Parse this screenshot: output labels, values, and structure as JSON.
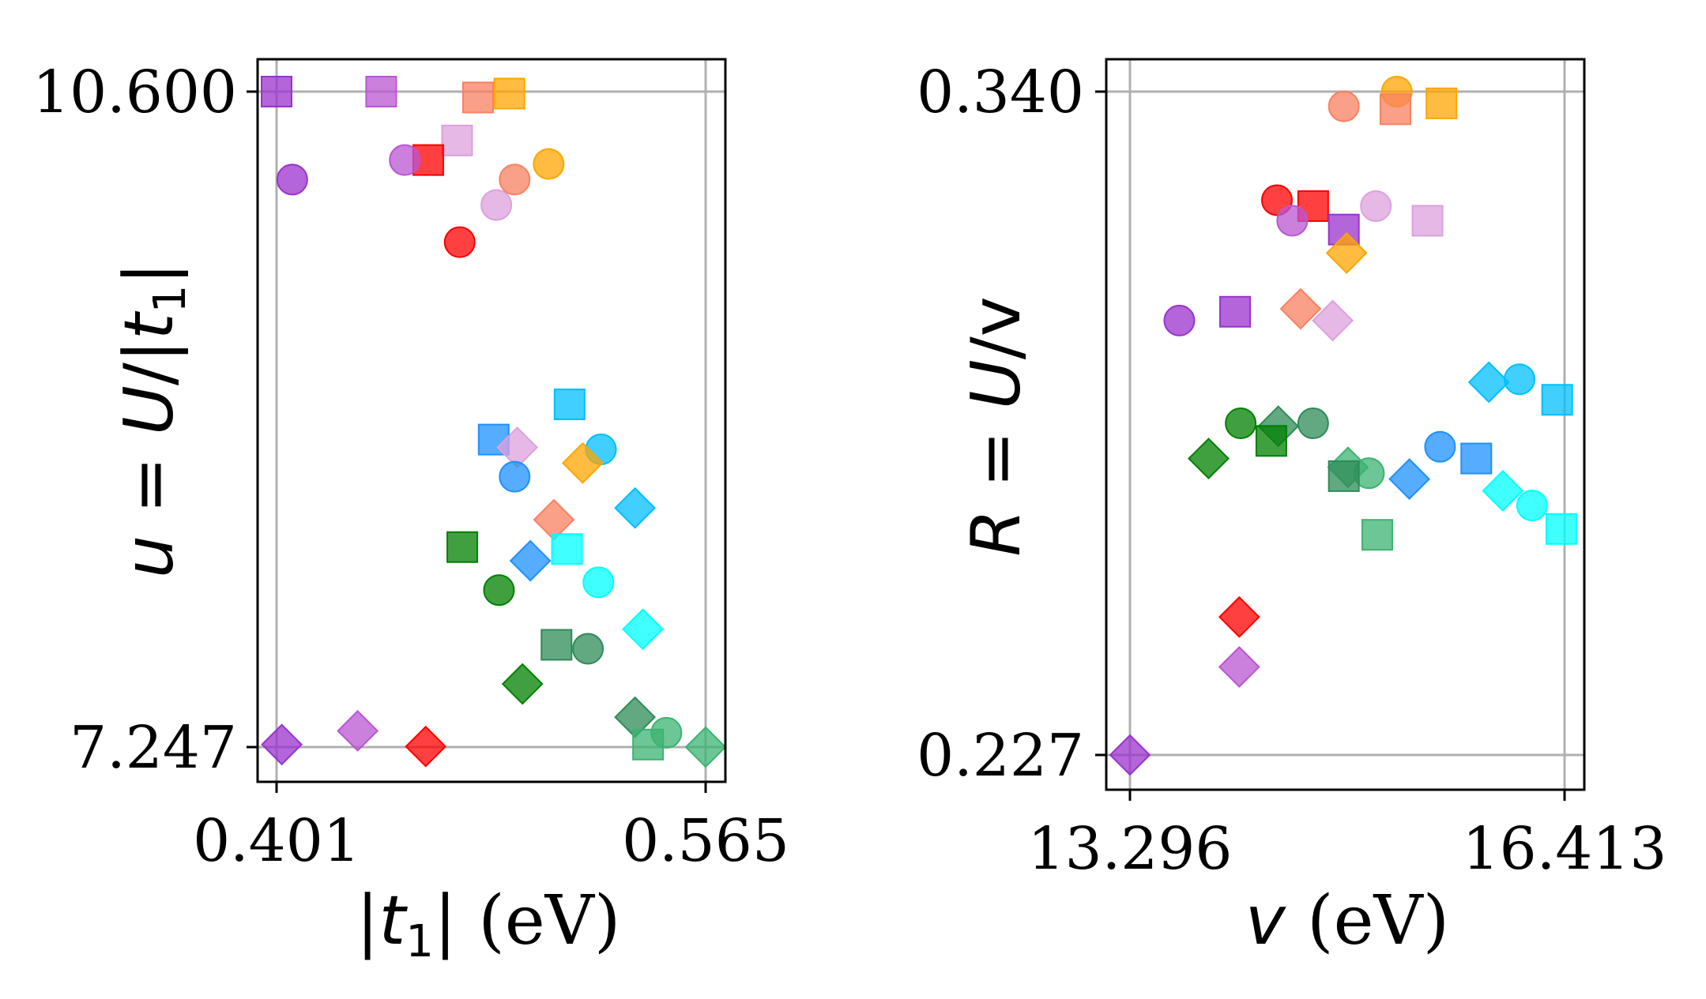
{
  "chart_data": [
    {
      "type": "scatter",
      "xlabel": "|t1| (eV)",
      "ylabel": "u = U/|t1|",
      "xlim": [
        0.401,
        0.565
      ],
      "ylim": [
        7.247,
        10.6
      ],
      "xticks": [
        "0.401",
        "0.565"
      ],
      "yticks": [
        "7.247",
        "10.600"
      ],
      "grid": true,
      "points": [
        {
          "x": 0.401,
          "y": 10.6,
          "color": "#9932cc",
          "marker": "square"
        },
        {
          "x": 0.441,
          "y": 10.6,
          "color": "#ba55d3",
          "marker": "square"
        },
        {
          "x": 0.478,
          "y": 10.57,
          "color": "#fa8060",
          "marker": "square"
        },
        {
          "x": 0.49,
          "y": 10.59,
          "color": "#ffa500",
          "marker": "square"
        },
        {
          "x": 0.47,
          "y": 10.35,
          "color": "#dda0dd",
          "marker": "square"
        },
        {
          "x": 0.459,
          "y": 10.25,
          "color": "#ff0000",
          "marker": "square"
        },
        {
          "x": 0.45,
          "y": 10.25,
          "color": "#ba55d3",
          "marker": "circle"
        },
        {
          "x": 0.407,
          "y": 10.15,
          "color": "#9932cc",
          "marker": "circle"
        },
        {
          "x": 0.505,
          "y": 10.23,
          "color": "#ffa500",
          "marker": "circle"
        },
        {
          "x": 0.492,
          "y": 10.15,
          "color": "#fa8060",
          "marker": "circle"
        },
        {
          "x": 0.485,
          "y": 10.02,
          "color": "#dda0dd",
          "marker": "circle"
        },
        {
          "x": 0.471,
          "y": 9.83,
          "color": "#ff0000",
          "marker": "circle"
        },
        {
          "x": 0.513,
          "y": 9.0,
          "color": "#00bfff",
          "marker": "square"
        },
        {
          "x": 0.484,
          "y": 8.82,
          "color": "#1e90ff",
          "marker": "square"
        },
        {
          "x": 0.493,
          "y": 8.78,
          "color": "#dda0dd",
          "marker": "diamond"
        },
        {
          "x": 0.525,
          "y": 8.77,
          "color": "#00bfff",
          "marker": "circle"
        },
        {
          "x": 0.518,
          "y": 8.7,
          "color": "#ffa500",
          "marker": "diamond"
        },
        {
          "x": 0.492,
          "y": 8.63,
          "color": "#1e90ff",
          "marker": "circle"
        },
        {
          "x": 0.538,
          "y": 8.47,
          "color": "#00bfff",
          "marker": "diamond"
        },
        {
          "x": 0.507,
          "y": 8.41,
          "color": "#fa8060",
          "marker": "diamond"
        },
        {
          "x": 0.472,
          "y": 8.27,
          "color": "#008000",
          "marker": "square"
        },
        {
          "x": 0.512,
          "y": 8.26,
          "color": "#00ffff",
          "marker": "square"
        },
        {
          "x": 0.498,
          "y": 8.2,
          "color": "#1e90ff",
          "marker": "diamond"
        },
        {
          "x": 0.524,
          "y": 8.09,
          "color": "#00ffff",
          "marker": "circle"
        },
        {
          "x": 0.486,
          "y": 8.05,
          "color": "#008000",
          "marker": "circle"
        },
        {
          "x": 0.541,
          "y": 7.85,
          "color": "#00ffff",
          "marker": "diamond"
        },
        {
          "x": 0.508,
          "y": 7.77,
          "color": "#2e8b57",
          "marker": "square"
        },
        {
          "x": 0.52,
          "y": 7.75,
          "color": "#2e8b57",
          "marker": "circle"
        },
        {
          "x": 0.495,
          "y": 7.57,
          "color": "#008000",
          "marker": "diamond"
        },
        {
          "x": 0.538,
          "y": 7.4,
          "color": "#2e8b57",
          "marker": "diamond"
        },
        {
          "x": 0.55,
          "y": 7.32,
          "color": "#3cb371",
          "marker": "circle"
        },
        {
          "x": 0.403,
          "y": 7.26,
          "color": "#9932cc",
          "marker": "diamond"
        },
        {
          "x": 0.432,
          "y": 7.33,
          "color": "#ba55d3",
          "marker": "diamond"
        },
        {
          "x": 0.458,
          "y": 7.25,
          "color": "#ff0000",
          "marker": "diamond"
        },
        {
          "x": 0.543,
          "y": 7.26,
          "color": "#3cb371",
          "marker": "square"
        },
        {
          "x": 0.565,
          "y": 7.247,
          "color": "#3cb371",
          "marker": "diamond"
        }
      ]
    },
    {
      "type": "scatter",
      "xlabel": "v (eV)",
      "ylabel": "R = U/v",
      "xlim": [
        13.296,
        16.413
      ],
      "ylim": [
        0.227,
        0.34
      ],
      "xticks": [
        "13.296",
        "16.413"
      ],
      "yticks": [
        "0.227",
        "0.340"
      ],
      "grid": true,
      "points": [
        {
          "x": 15.21,
          "y": 0.34,
          "color": "#ffa500",
          "marker": "circle"
        },
        {
          "x": 14.83,
          "y": 0.3375,
          "color": "#fa8060",
          "marker": "circle"
        },
        {
          "x": 15.2,
          "y": 0.337,
          "color": "#fa8060",
          "marker": "square"
        },
        {
          "x": 15.53,
          "y": 0.338,
          "color": "#ffa500",
          "marker": "square"
        },
        {
          "x": 14.35,
          "y": 0.3215,
          "color": "#ff0000",
          "marker": "circle"
        },
        {
          "x": 14.61,
          "y": 0.3205,
          "color": "#ff0000",
          "marker": "square"
        },
        {
          "x": 15.06,
          "y": 0.3205,
          "color": "#dda0dd",
          "marker": "circle"
        },
        {
          "x": 15.43,
          "y": 0.318,
          "color": "#dda0dd",
          "marker": "square"
        },
        {
          "x": 14.46,
          "y": 0.318,
          "color": "#ba55d3",
          "marker": "circle"
        },
        {
          "x": 14.83,
          "y": 0.3165,
          "color": "#9932cc",
          "marker": "square"
        },
        {
          "x": 14.85,
          "y": 0.3125,
          "color": "#ffa500",
          "marker": "diamond"
        },
        {
          "x": 13.65,
          "y": 0.301,
          "color": "#9932cc",
          "marker": "circle"
        },
        {
          "x": 14.05,
          "y": 0.3025,
          "color": "#9932cc",
          "marker": "square"
        },
        {
          "x": 14.52,
          "y": 0.303,
          "color": "#fa8060",
          "marker": "diamond"
        },
        {
          "x": 14.75,
          "y": 0.301,
          "color": "#dda0dd",
          "marker": "diamond"
        },
        {
          "x": 15.87,
          "y": 0.2905,
          "color": "#00bfff",
          "marker": "diamond"
        },
        {
          "x": 16.09,
          "y": 0.291,
          "color": "#00bfff",
          "marker": "circle"
        },
        {
          "x": 16.36,
          "y": 0.2875,
          "color": "#00bfff",
          "marker": "square"
        },
        {
          "x": 14.09,
          "y": 0.2835,
          "color": "#008000",
          "marker": "circle"
        },
        {
          "x": 14.36,
          "y": 0.283,
          "color": "#2e8b57",
          "marker": "diamond"
        },
        {
          "x": 14.61,
          "y": 0.2835,
          "color": "#2e8b57",
          "marker": "circle"
        },
        {
          "x": 14.31,
          "y": 0.2805,
          "color": "#008000",
          "marker": "square"
        },
        {
          "x": 13.86,
          "y": 0.2775,
          "color": "#008000",
          "marker": "diamond"
        },
        {
          "x": 15.52,
          "y": 0.2795,
          "color": "#1e90ff",
          "marker": "circle"
        },
        {
          "x": 15.78,
          "y": 0.2775,
          "color": "#1e90ff",
          "marker": "square"
        },
        {
          "x": 14.86,
          "y": 0.276,
          "color": "#3cb371",
          "marker": "diamond"
        },
        {
          "x": 15.01,
          "y": 0.275,
          "color": "#3cb371",
          "marker": "circle"
        },
        {
          "x": 14.83,
          "y": 0.2745,
          "color": "#2e8b57",
          "marker": "square"
        },
        {
          "x": 15.3,
          "y": 0.274,
          "color": "#1e90ff",
          "marker": "diamond"
        },
        {
          "x": 15.97,
          "y": 0.272,
          "color": "#00ffff",
          "marker": "diamond"
        },
        {
          "x": 16.18,
          "y": 0.2695,
          "color": "#00ffff",
          "marker": "circle"
        },
        {
          "x": 16.39,
          "y": 0.2655,
          "color": "#00ffff",
          "marker": "square"
        },
        {
          "x": 15.07,
          "y": 0.2645,
          "color": "#3cb371",
          "marker": "square"
        },
        {
          "x": 14.08,
          "y": 0.2505,
          "color": "#ff0000",
          "marker": "diamond"
        },
        {
          "x": 14.08,
          "y": 0.242,
          "color": "#ba55d3",
          "marker": "diamond"
        },
        {
          "x": 13.296,
          "y": 0.227,
          "color": "#9932cc",
          "marker": "diamond"
        }
      ]
    }
  ]
}
